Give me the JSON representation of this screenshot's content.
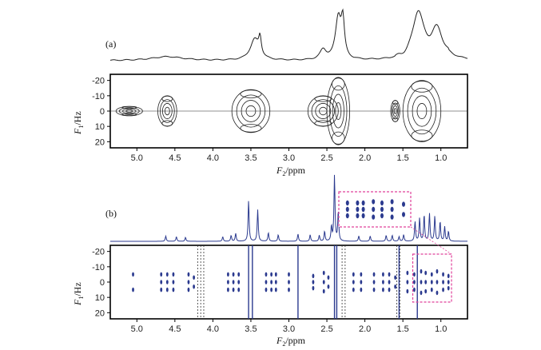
{
  "chart_data": [
    {
      "panel": "(a)",
      "type": "heatmap",
      "plot": "2D J-resolved spectrum with projected 1D spectrum",
      "xlabel_main": "F",
      "xlabel_sub": "2",
      "xlabel_unit": "/ppm",
      "ylabel_main": "F",
      "ylabel_sub": "1",
      "ylabel_unit": "/Hz",
      "xlim": [
        5.35,
        0.65
      ],
      "ylim": [
        -24,
        24
      ],
      "x_ticks": [
        "5.0",
        "4.5",
        "4.0",
        "3.5",
        "3.0",
        "2.5",
        "2.0",
        "1.5",
        "1.0"
      ],
      "x_tick_values": [
        5.0,
        4.5,
        4.0,
        3.5,
        3.0,
        2.5,
        2.0,
        1.5,
        1.0
      ],
      "y_ticks": [
        "-20",
        "-10",
        "0",
        "10",
        "20"
      ],
      "y_tick_values": [
        -20,
        -10,
        0,
        10,
        20
      ],
      "color": "#222222",
      "spectrum_peaks": [
        {
          "x": 4.6,
          "h": 0.08,
          "w": 0.5
        },
        {
          "x": 3.45,
          "h": 0.42,
          "w": 0.14
        },
        {
          "x": 3.38,
          "h": 0.35,
          "w": 0.04
        },
        {
          "x": 2.55,
          "h": 0.2,
          "w": 0.1
        },
        {
          "x": 2.35,
          "h": 0.85,
          "w": 0.09
        },
        {
          "x": 2.29,
          "h": 0.7,
          "w": 0.05
        },
        {
          "x": 1.3,
          "h": 0.95,
          "w": 0.17
        },
        {
          "x": 1.05,
          "h": 0.6,
          "w": 0.2
        }
      ],
      "contours": [
        {
          "x": 5.1,
          "w": 0.35,
          "hz": 3
        },
        {
          "x": 4.6,
          "w": 0.25,
          "hz": 10
        },
        {
          "x": 3.5,
          "w": 0.5,
          "hz": 14
        },
        {
          "x": 2.55,
          "w": 0.4,
          "hz": 10
        },
        {
          "x": 2.35,
          "w": 0.3,
          "hz": 22
        },
        {
          "x": 1.6,
          "w": 0.12,
          "hz": 7
        },
        {
          "x": 1.25,
          "w": 0.5,
          "hz": 20
        }
      ]
    },
    {
      "panel": "(b)",
      "type": "heatmap",
      "plot": "pure-shift 2D J-resolved spectrum with projected 1D spectrum",
      "xlabel_main": "F",
      "xlabel_sub": "2",
      "xlabel_unit": "/ppm",
      "ylabel_main": "F",
      "ylabel_sub": "1",
      "ylabel_unit": "/Hz",
      "xlim": [
        5.35,
        0.65
      ],
      "ylim": [
        -24,
        24
      ],
      "x_ticks": [
        "5.0",
        "4.5",
        "4.0",
        "3.5",
        "3.0",
        "2.5",
        "2.0",
        "1.5",
        "1.0"
      ],
      "x_tick_values": [
        5.0,
        4.5,
        4.0,
        3.5,
        3.0,
        2.5,
        2.0,
        1.5,
        1.0
      ],
      "y_ticks": [
        "-20",
        "-10",
        "0",
        "10",
        "20"
      ],
      "y_tick_values": [
        -20,
        -10,
        0,
        10,
        20
      ],
      "color": "#2b3a8f",
      "highlight_color": "#e0409a",
      "spectrum_peaks": [
        {
          "x": 4.62,
          "h": 0.08
        },
        {
          "x": 4.48,
          "h": 0.07
        },
        {
          "x": 4.36,
          "h": 0.06
        },
        {
          "x": 3.87,
          "h": 0.07
        },
        {
          "x": 3.76,
          "h": 0.09
        },
        {
          "x": 3.7,
          "h": 0.12
        },
        {
          "x": 3.53,
          "h": 0.62
        },
        {
          "x": 3.41,
          "h": 0.48
        },
        {
          "x": 3.27,
          "h": 0.13
        },
        {
          "x": 3.14,
          "h": 0.1
        },
        {
          "x": 2.88,
          "h": 0.11
        },
        {
          "x": 2.72,
          "h": 0.1
        },
        {
          "x": 2.6,
          "h": 0.09
        },
        {
          "x": 2.53,
          "h": 0.15
        },
        {
          "x": 2.44,
          "h": 0.22
        },
        {
          "x": 2.4,
          "h": 1.0
        },
        {
          "x": 2.35,
          "h": 0.45
        },
        {
          "x": 2.08,
          "h": 0.08
        },
        {
          "x": 1.93,
          "h": 0.08
        },
        {
          "x": 1.72,
          "h": 0.09
        },
        {
          "x": 1.64,
          "h": 0.09
        },
        {
          "x": 1.55,
          "h": 0.07
        },
        {
          "x": 1.49,
          "h": 0.1
        },
        {
          "x": 1.34,
          "h": 0.3
        },
        {
          "x": 1.28,
          "h": 0.35
        },
        {
          "x": 1.22,
          "h": 0.4
        },
        {
          "x": 1.15,
          "h": 0.42
        },
        {
          "x": 1.08,
          "h": 0.38
        },
        {
          "x": 1.01,
          "h": 0.3
        },
        {
          "x": 0.95,
          "h": 0.22
        },
        {
          "x": 0.9,
          "h": 0.15
        }
      ],
      "columns": [
        {
          "x": 5.05,
          "hz": [
            -5,
            5
          ]
        },
        {
          "x": 4.68,
          "hz": [
            -5,
            0,
            5
          ]
        },
        {
          "x": 4.6,
          "hz": [
            -5,
            0,
            5
          ]
        },
        {
          "x": 4.52,
          "hz": [
            -5,
            0,
            5
          ]
        },
        {
          "x": 4.32,
          "hz": [
            -5,
            0,
            5
          ]
        },
        {
          "x": 4.25,
          "hz": [
            -3,
            3
          ]
        },
        {
          "x": 3.8,
          "hz": [
            -5,
            0,
            5
          ]
        },
        {
          "x": 3.73,
          "hz": [
            -5,
            0,
            5
          ]
        },
        {
          "x": 3.66,
          "hz": [
            -5,
            0,
            5
          ]
        },
        {
          "x": 3.3,
          "hz": [
            -5,
            0,
            5
          ]
        },
        {
          "x": 3.23,
          "hz": [
            -5,
            0,
            5
          ]
        },
        {
          "x": 3.17,
          "hz": [
            -5,
            0,
            5
          ]
        },
        {
          "x": 3.0,
          "hz": [
            -5,
            0,
            5
          ]
        },
        {
          "x": 2.68,
          "hz": [
            -4,
            0,
            4
          ]
        },
        {
          "x": 2.54,
          "hz": [
            -6,
            0,
            6
          ]
        },
        {
          "x": 2.48,
          "hz": [
            -3,
            3
          ]
        },
        {
          "x": 2.15,
          "hz": [
            -5,
            0,
            5
          ]
        },
        {
          "x": 2.05,
          "hz": [
            -5,
            0,
            5
          ]
        },
        {
          "x": 1.88,
          "hz": [
            -5,
            0,
            5
          ]
        },
        {
          "x": 1.76,
          "hz": [
            -5,
            0,
            5
          ]
        },
        {
          "x": 1.68,
          "hz": [
            -5,
            0,
            5
          ]
        },
        {
          "x": 1.6,
          "hz": [
            -3,
            3
          ]
        },
        {
          "x": 1.44,
          "hz": [
            -6,
            0,
            6
          ]
        },
        {
          "x": 1.35,
          "hz": [
            -5,
            0,
            5
          ]
        },
        {
          "x": 1.26,
          "hz": [
            -7,
            0,
            7
          ]
        },
        {
          "x": 1.2,
          "hz": [
            -6,
            0,
            6
          ]
        },
        {
          "x": 1.12,
          "hz": [
            -5,
            0,
            5
          ]
        },
        {
          "x": 1.05,
          "hz": [
            -7,
            0,
            7
          ]
        },
        {
          "x": 0.97,
          "hz": [
            -5,
            0,
            5
          ]
        },
        {
          "x": 0.9,
          "hz": [
            -4,
            0,
            4
          ]
        }
      ],
      "solid_lines": [
        3.53,
        3.48,
        2.88,
        2.4,
        2.37,
        1.55,
        1.31
      ],
      "dashed_lines": [
        4.2,
        4.16,
        4.12,
        2.3,
        2.26,
        1.58,
        1.54
      ],
      "zoom_region": [
        1.37,
        0.86
      ],
      "inset_columns": [
        {
          "u": 0.12,
          "hz": [
            -5,
            0,
            5
          ]
        },
        {
          "u": 0.26,
          "hz": [
            -5,
            0,
            5
          ]
        },
        {
          "u": 0.34,
          "hz": [
            -5,
            0,
            5
          ]
        },
        {
          "u": 0.48,
          "hz": [
            -6,
            0,
            6
          ]
        },
        {
          "u": 0.6,
          "hz": [
            -5,
            0,
            5
          ]
        },
        {
          "u": 0.74,
          "hz": [
            -6,
            0,
            6
          ]
        },
        {
          "u": 0.9,
          "hz": [
            -4,
            4
          ]
        }
      ]
    }
  ]
}
